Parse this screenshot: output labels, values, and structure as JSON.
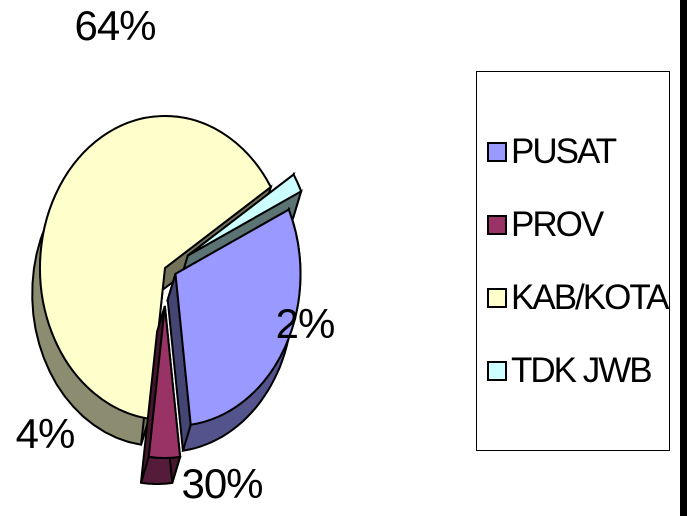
{
  "chart_data": {
    "type": "pie",
    "title": "",
    "style": "3d-exploded",
    "categories": [
      "PUSAT",
      "PROV",
      "KAB/KOTA",
      "TDK JWB"
    ],
    "values": [
      30,
      4,
      64,
      2
    ],
    "data_labels": [
      "30%",
      "4%",
      "64%",
      "2%"
    ],
    "colors": {
      "PUSAT": "#9999ff",
      "PROV": "#993366",
      "KAB/KOTA": "#ffffcc",
      "TDK JWB": "#ccffff"
    },
    "legend": {
      "placement": "right",
      "entries": [
        "PUSAT",
        "PROV",
        "KAB/KOTA",
        "TDK JWB"
      ]
    }
  }
}
